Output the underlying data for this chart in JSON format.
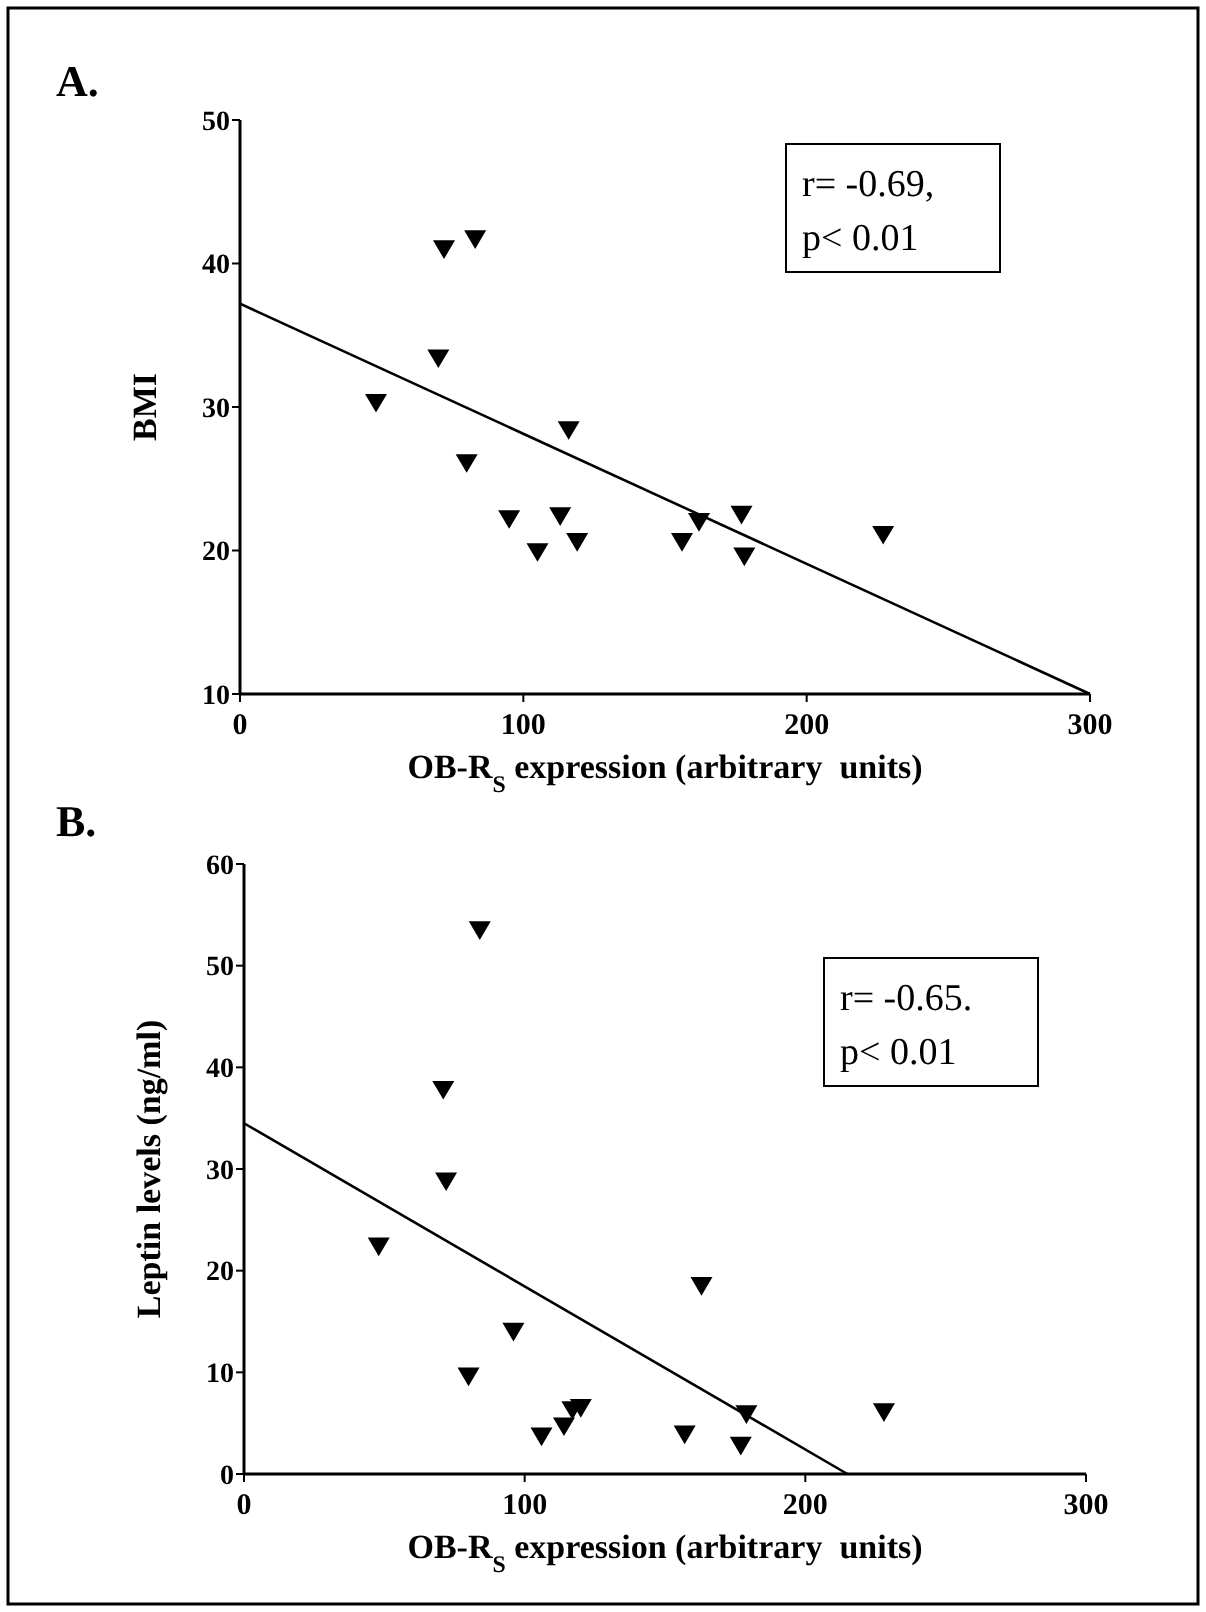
{
  "chart_data": [
    {
      "type": "scatter",
      "title": "A.",
      "xlabel": "OB-R$_{S}$ expression (arbitrary  units)",
      "ylabel": "BMI",
      "xlim": [
        0,
        300
      ],
      "xticks": [
        0,
        100,
        200,
        300
      ],
      "ylim": [
        10,
        50
      ],
      "yticks": [
        10,
        20,
        30,
        40,
        50
      ],
      "grid": false,
      "marker": "triangle",
      "annotations": [
        "r= -0.69,",
        "p< 0.01"
      ],
      "series": [
        {
          "color": "#000000",
          "x": [
            48,
            72,
            83,
            70,
            80,
            95,
            105,
            113,
            119,
            116,
            162,
            156,
            177,
            178,
            227
          ],
          "values": [
            30.3,
            41.0,
            41.7,
            33.4,
            26.1,
            22.2,
            19.9,
            22.4,
            20.6,
            28.4,
            22.0,
            20.6,
            22.5,
            19.6,
            21.1
          ]
        },
        {
          "type": "line",
          "color": "#000000",
          "marker": "none",
          "line_style": "solid",
          "x": [
            0,
            300
          ],
          "values": [
            37.2,
            10
          ]
        }
      ]
    },
    {
      "type": "scatter",
      "title": "B.",
      "xlabel": "OB-R$_{S}$ expression (arbitrary  units)",
      "ylabel": "Leptin levels (ng/ml)",
      "xlim": [
        0,
        300
      ],
      "xticks": [
        0,
        100,
        200,
        300
      ],
      "ylim": [
        0,
        60
      ],
      "yticks": [
        0,
        10,
        20,
        30,
        40,
        50,
        60
      ],
      "grid": false,
      "marker": "triangle",
      "annotations": [
        "r= -0.65.",
        "p< 0.01"
      ],
      "series": [
        {
          "color": "#000000",
          "x": [
            84,
            71,
            72,
            48,
            96,
            80,
            106,
            114,
            117,
            120,
            163,
            157,
            179,
            177,
            228
          ],
          "values": [
            53.5,
            37.8,
            28.8,
            22.4,
            14.0,
            9.6,
            3.7,
            4.7,
            6.3,
            6.5,
            18.5,
            3.9,
            5.9,
            2.8,
            6.1
          ]
        },
        {
          "type": "line",
          "color": "#000000",
          "marker": "none",
          "line_style": "solid",
          "x": [
            0,
            215
          ],
          "values": [
            34.5,
            0
          ]
        }
      ]
    }
  ]
}
